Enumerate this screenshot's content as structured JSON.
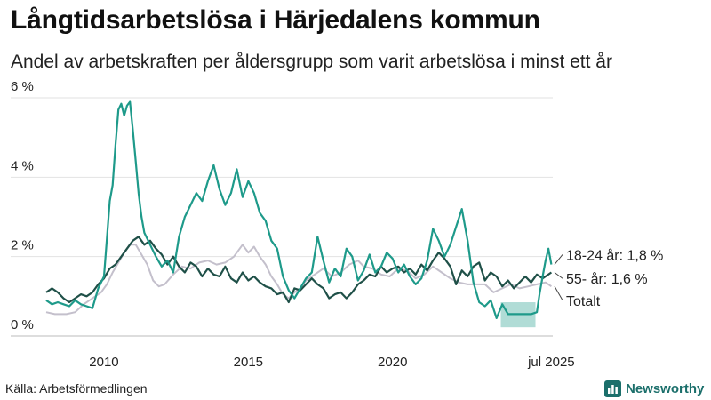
{
  "title": "Långtidsarbetslösa i Härjedalens kommun",
  "subtitle": "Andel av arbetskraften per åldersgrupp som varit arbetslösa i minst ett år",
  "source": "Källa: Arbetsförmedlingen",
  "logo": {
    "text": "Newsworthy",
    "icon": "bar-chart-icon",
    "color": "#1b6f6b"
  },
  "chart_data": {
    "type": "line",
    "title": "Långtidsarbetslösa i Härjedalens kommun",
    "subtitle": "Andel av arbetskraften per åldersgrupp som varit arbetslösa i minst ett år",
    "x_ticks": [
      {
        "value": 2010,
        "label": "2010"
      },
      {
        "value": 2015,
        "label": "2015"
      },
      {
        "value": 2020,
        "label": "2020"
      },
      {
        "value": 2025.5,
        "label": "jul 2025"
      }
    ],
    "y_ticks": [
      {
        "value": 0,
        "label": "0 %"
      },
      {
        "value": 2,
        "label": "2 %"
      },
      {
        "value": 4,
        "label": "4 %"
      },
      {
        "value": 6,
        "label": "6 %"
      }
    ],
    "xlim": [
      2008.0,
      2025.55
    ],
    "ylim": [
      0,
      6
    ],
    "grid": "horizontal",
    "series": [
      {
        "name": "Totalt",
        "label": "Totalt",
        "color": "#c4c0cc",
        "width": 2,
        "points": [
          [
            2008.0,
            0.6
          ],
          [
            2008.3,
            0.55
          ],
          [
            2008.7,
            0.55
          ],
          [
            2009.0,
            0.6
          ],
          [
            2009.3,
            0.8
          ],
          [
            2009.6,
            0.95
          ],
          [
            2009.9,
            1.1
          ],
          [
            2010.1,
            1.3
          ],
          [
            2010.3,
            1.6
          ],
          [
            2010.5,
            1.85
          ],
          [
            2010.7,
            2.1
          ],
          [
            2010.9,
            2.3
          ],
          [
            2011.1,
            2.3
          ],
          [
            2011.3,
            2.05
          ],
          [
            2011.5,
            1.8
          ],
          [
            2011.7,
            1.4
          ],
          [
            2011.9,
            1.25
          ],
          [
            2012.1,
            1.3
          ],
          [
            2012.4,
            1.55
          ],
          [
            2012.7,
            1.75
          ],
          [
            2013.0,
            1.7
          ],
          [
            2013.3,
            1.85
          ],
          [
            2013.6,
            1.9
          ],
          [
            2013.9,
            1.8
          ],
          [
            2014.2,
            1.85
          ],
          [
            2014.5,
            2.0
          ],
          [
            2014.8,
            2.3
          ],
          [
            2015.0,
            2.1
          ],
          [
            2015.2,
            2.25
          ],
          [
            2015.4,
            2.0
          ],
          [
            2015.6,
            1.8
          ],
          [
            2015.8,
            1.5
          ],
          [
            2016.0,
            1.3
          ],
          [
            2016.2,
            1.05
          ],
          [
            2016.4,
            0.95
          ],
          [
            2016.6,
            1.1
          ],
          [
            2016.8,
            1.2
          ],
          [
            2017.0,
            1.4
          ],
          [
            2017.3,
            1.55
          ],
          [
            2017.6,
            1.7
          ],
          [
            2017.9,
            1.5
          ],
          [
            2018.2,
            1.6
          ],
          [
            2018.5,
            1.8
          ],
          [
            2018.8,
            1.9
          ],
          [
            2019.0,
            1.75
          ],
          [
            2019.3,
            1.7
          ],
          [
            2019.6,
            1.55
          ],
          [
            2019.9,
            1.5
          ],
          [
            2020.2,
            1.7
          ],
          [
            2020.5,
            1.65
          ],
          [
            2020.8,
            1.45
          ],
          [
            2021.1,
            1.55
          ],
          [
            2021.4,
            1.75
          ],
          [
            2021.7,
            1.6
          ],
          [
            2022.0,
            1.45
          ],
          [
            2022.3,
            1.35
          ],
          [
            2022.6,
            1.3
          ],
          [
            2022.9,
            1.3
          ],
          [
            2023.2,
            1.3
          ],
          [
            2023.5,
            1.1
          ],
          [
            2023.8,
            1.2
          ],
          [
            2024.1,
            1.3
          ],
          [
            2024.4,
            1.2
          ],
          [
            2024.7,
            1.25
          ],
          [
            2025.0,
            1.3
          ],
          [
            2025.3,
            1.35
          ],
          [
            2025.5,
            1.25
          ]
        ]
      },
      {
        "name": "55- år",
        "label": "55- år: 1,6 %",
        "color": "#1f5048",
        "width": 2.2,
        "points": [
          [
            2008.0,
            1.1
          ],
          [
            2008.2,
            1.2
          ],
          [
            2008.4,
            1.1
          ],
          [
            2008.6,
            0.95
          ],
          [
            2008.8,
            0.85
          ],
          [
            2009.0,
            0.95
          ],
          [
            2009.2,
            1.05
          ],
          [
            2009.4,
            1.0
          ],
          [
            2009.6,
            1.1
          ],
          [
            2009.8,
            1.3
          ],
          [
            2010.0,
            1.45
          ],
          [
            2010.2,
            1.7
          ],
          [
            2010.4,
            1.8
          ],
          [
            2010.6,
            2.0
          ],
          [
            2010.8,
            2.2
          ],
          [
            2011.0,
            2.4
          ],
          [
            2011.2,
            2.5
          ],
          [
            2011.4,
            2.3
          ],
          [
            2011.6,
            2.4
          ],
          [
            2011.8,
            2.2
          ],
          [
            2012.0,
            2.05
          ],
          [
            2012.2,
            1.8
          ],
          [
            2012.4,
            2.0
          ],
          [
            2012.6,
            1.75
          ],
          [
            2012.8,
            1.6
          ],
          [
            2013.0,
            1.85
          ],
          [
            2013.2,
            1.75
          ],
          [
            2013.4,
            1.5
          ],
          [
            2013.6,
            1.7
          ],
          [
            2013.8,
            1.55
          ],
          [
            2014.0,
            1.5
          ],
          [
            2014.2,
            1.75
          ],
          [
            2014.4,
            1.45
          ],
          [
            2014.6,
            1.35
          ],
          [
            2014.8,
            1.6
          ],
          [
            2015.0,
            1.4
          ],
          [
            2015.2,
            1.5
          ],
          [
            2015.4,
            1.35
          ],
          [
            2015.6,
            1.25
          ],
          [
            2015.8,
            1.2
          ],
          [
            2016.0,
            1.05
          ],
          [
            2016.2,
            1.1
          ],
          [
            2016.4,
            0.85
          ],
          [
            2016.6,
            1.2
          ],
          [
            2016.8,
            1.15
          ],
          [
            2017.0,
            1.3
          ],
          [
            2017.2,
            1.45
          ],
          [
            2017.4,
            1.3
          ],
          [
            2017.6,
            1.2
          ],
          [
            2017.8,
            0.95
          ],
          [
            2018.0,
            1.05
          ],
          [
            2018.2,
            1.1
          ],
          [
            2018.4,
            0.95
          ],
          [
            2018.6,
            1.1
          ],
          [
            2018.8,
            1.3
          ],
          [
            2019.0,
            1.4
          ],
          [
            2019.2,
            1.55
          ],
          [
            2019.4,
            1.5
          ],
          [
            2019.6,
            1.75
          ],
          [
            2019.8,
            1.6
          ],
          [
            2020.0,
            1.7
          ],
          [
            2020.2,
            1.75
          ],
          [
            2020.4,
            1.6
          ],
          [
            2020.6,
            1.7
          ],
          [
            2020.8,
            1.55
          ],
          [
            2021.0,
            1.8
          ],
          [
            2021.2,
            1.65
          ],
          [
            2021.4,
            1.9
          ],
          [
            2021.6,
            2.1
          ],
          [
            2021.8,
            1.95
          ],
          [
            2022.0,
            1.75
          ],
          [
            2022.2,
            1.3
          ],
          [
            2022.4,
            1.65
          ],
          [
            2022.6,
            1.5
          ],
          [
            2022.8,
            1.75
          ],
          [
            2023.0,
            1.85
          ],
          [
            2023.2,
            1.4
          ],
          [
            2023.4,
            1.6
          ],
          [
            2023.6,
            1.5
          ],
          [
            2023.8,
            1.25
          ],
          [
            2024.0,
            1.4
          ],
          [
            2024.2,
            1.2
          ],
          [
            2024.4,
            1.35
          ],
          [
            2024.6,
            1.5
          ],
          [
            2024.8,
            1.35
          ],
          [
            2025.0,
            1.55
          ],
          [
            2025.2,
            1.45
          ],
          [
            2025.5,
            1.6
          ]
        ]
      },
      {
        "name": "18-24 år",
        "label": "18-24 år: 1,8 %",
        "color": "#1e9a8a",
        "width": 2.2,
        "points": [
          [
            2008.0,
            0.9
          ],
          [
            2008.2,
            0.8
          ],
          [
            2008.4,
            0.85
          ],
          [
            2008.6,
            0.8
          ],
          [
            2008.8,
            0.75
          ],
          [
            2009.0,
            0.9
          ],
          [
            2009.2,
            0.8
          ],
          [
            2009.4,
            0.75
          ],
          [
            2009.6,
            0.7
          ],
          [
            2009.8,
            1.2
          ],
          [
            2010.0,
            1.5
          ],
          [
            2010.2,
            3.4
          ],
          [
            2010.3,
            3.8
          ],
          [
            2010.4,
            4.8
          ],
          [
            2010.5,
            5.7
          ],
          [
            2010.6,
            5.85
          ],
          [
            2010.7,
            5.55
          ],
          [
            2010.8,
            5.8
          ],
          [
            2010.9,
            5.9
          ],
          [
            2011.0,
            5.2
          ],
          [
            2011.1,
            4.4
          ],
          [
            2011.2,
            3.6
          ],
          [
            2011.3,
            3.0
          ],
          [
            2011.4,
            2.6
          ],
          [
            2011.6,
            2.3
          ],
          [
            2011.8,
            2.0
          ],
          [
            2012.0,
            1.75
          ],
          [
            2012.2,
            1.9
          ],
          [
            2012.4,
            1.6
          ],
          [
            2012.6,
            2.5
          ],
          [
            2012.8,
            3.0
          ],
          [
            2013.0,
            3.3
          ],
          [
            2013.2,
            3.6
          ],
          [
            2013.4,
            3.4
          ],
          [
            2013.6,
            3.9
          ],
          [
            2013.8,
            4.3
          ],
          [
            2014.0,
            3.7
          ],
          [
            2014.2,
            3.3
          ],
          [
            2014.4,
            3.6
          ],
          [
            2014.6,
            4.2
          ],
          [
            2014.8,
            3.5
          ],
          [
            2015.0,
            3.9
          ],
          [
            2015.2,
            3.6
          ],
          [
            2015.4,
            3.1
          ],
          [
            2015.6,
            2.9
          ],
          [
            2015.8,
            2.4
          ],
          [
            2016.0,
            2.2
          ],
          [
            2016.2,
            1.5
          ],
          [
            2016.4,
            1.15
          ],
          [
            2016.6,
            0.95
          ],
          [
            2016.8,
            1.2
          ],
          [
            2017.0,
            1.45
          ],
          [
            2017.2,
            1.6
          ],
          [
            2017.4,
            2.5
          ],
          [
            2017.6,
            1.9
          ],
          [
            2017.8,
            1.35
          ],
          [
            2018.0,
            1.7
          ],
          [
            2018.2,
            1.5
          ],
          [
            2018.4,
            2.2
          ],
          [
            2018.6,
            2.0
          ],
          [
            2018.8,
            1.4
          ],
          [
            2019.0,
            1.65
          ],
          [
            2019.2,
            2.05
          ],
          [
            2019.4,
            1.6
          ],
          [
            2019.6,
            1.75
          ],
          [
            2019.8,
            2.1
          ],
          [
            2020.0,
            1.95
          ],
          [
            2020.2,
            1.6
          ],
          [
            2020.4,
            1.8
          ],
          [
            2020.6,
            1.5
          ],
          [
            2020.8,
            1.3
          ],
          [
            2021.0,
            1.45
          ],
          [
            2021.2,
            1.9
          ],
          [
            2021.4,
            2.7
          ],
          [
            2021.6,
            2.4
          ],
          [
            2021.8,
            2.0
          ],
          [
            2022.0,
            2.3
          ],
          [
            2022.2,
            2.75
          ],
          [
            2022.4,
            3.2
          ],
          [
            2022.6,
            2.4
          ],
          [
            2022.8,
            1.35
          ],
          [
            2023.0,
            0.85
          ],
          [
            2023.2,
            0.75
          ],
          [
            2023.4,
            0.9
          ],
          [
            2023.6,
            0.45
          ],
          [
            2023.8,
            0.8
          ],
          [
            2024.0,
            0.55
          ],
          [
            2024.2,
            0.55
          ],
          [
            2024.5,
            0.55
          ],
          [
            2024.8,
            0.55
          ],
          [
            2025.0,
            0.6
          ],
          [
            2025.1,
            1.1
          ],
          [
            2025.2,
            1.5
          ],
          [
            2025.3,
            1.9
          ],
          [
            2025.4,
            2.2
          ],
          [
            2025.5,
            1.8
          ]
        ]
      }
    ],
    "band": {
      "series": "18-24 år",
      "x": [
        2023.75,
        2024.95
      ],
      "y": [
        0.22,
        0.85
      ],
      "color": "#1e9a8a",
      "opacity": 0.35
    },
    "end_labels": [
      {
        "series": "18-24 år",
        "text": "18-24 år: 1,8 %",
        "value": 1.8,
        "label_y": 2.05
      },
      {
        "series": "55- år",
        "text": "55- år: 1,6 %",
        "value": 1.6,
        "label_y": 1.45
      },
      {
        "series": "Totalt",
        "text": "Totalt",
        "value": 1.25,
        "label_y": 0.9
      }
    ]
  }
}
